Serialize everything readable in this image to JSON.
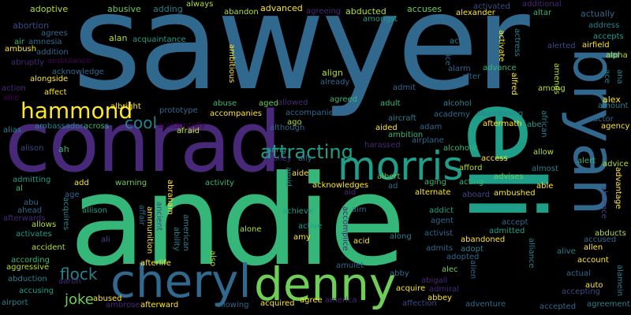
{
  "palette": {
    "yellow": "#fde725",
    "lime": "#b5de2b",
    "green": "#6ece58",
    "sea": "#35b779",
    "teal": "#1f9e89",
    "cyan": "#26828e",
    "blue": "#31688e",
    "indigo": "#3e4989",
    "purple": "#482878",
    "dark": "#440154"
  },
  "words": {
    "sawyer": "sawyer",
    "andie": "andie",
    "eli": "eli",
    "conrad": "conrad",
    "bryan": "bryan",
    "cheryl": "cheryl",
    "denny": "denny",
    "morris": "morris",
    "hammond": "hammond",
    "attracting": "attracting",
    "flock": "flock",
    "cool": "cool",
    "joke": "joke",
    "adoptive": "adoptive",
    "abusive": "abusive",
    "adding": "adding",
    "always": "always",
    "abandon": "abandon",
    "advanced": "advanced",
    "agreeing": "agreeing",
    "abducted": "abducted",
    "accuses": "accuses",
    "activated": "activated",
    "additional": "additional",
    "alexander": "alexander",
    "altar": "altar",
    "actually": "actually",
    "abortion": "abortion",
    "agrees": "agrees",
    "amongst": "amongst",
    "air": "air",
    "amnesia": "amnesia",
    "ambush": "ambush",
    "addition": "addition",
    "abruptly": "abruptly",
    "ambulance": "ambulance",
    "acknowledge": "acknowledge",
    "alan": "alan",
    "acquaintance": "acquaintance",
    "act": "act",
    "address": "address",
    "accepts": "accepts",
    "airfield": "airfield",
    "alerted": "alerted",
    "alpha": "alpha",
    "alarm": "alarm",
    "advance": "advance",
    "alter": "alter",
    "alice": "alice",
    "alfred": "alfred",
    "activate": "activate",
    "actress": "actress",
    "amends": "amends",
    "ace": "ace",
    "ana": "ana",
    "alongside": "alongside",
    "align": "align",
    "already": "already",
    "ambitious": "ambitious",
    "action": "action",
    "allie": "allie",
    "affect": "affect",
    "admit": "admit",
    "among": "among",
    "alex": "alex",
    "amount": "amount",
    "albright": "albright",
    "ambassador": "ambassador",
    "across": "across",
    "abuse": "abuse",
    "aged": "aged",
    "allowed": "allowed",
    "agreed": "agreed",
    "adult": "adult",
    "alcohol": "alcohol",
    "abandoning": "abandoning",
    "prototype": "prototype",
    "accompanies": "accompanies",
    "accompanied": "accompanied",
    "aircraft": "aircraft",
    "academy": "academy",
    "accidentally": "accidentally",
    "although": "although",
    "ago": "ago",
    "adam": "adam",
    "aftermath": "aftermath",
    "abe": "abe",
    "actor": "actor",
    "agency": "agency",
    "alias": "alias",
    "afraid": "afraid",
    "aided": "aided",
    "african": "african",
    "ambition": "ambition",
    "harassed": "harassed",
    "airplane": "airplane",
    "alison": "alison",
    "ah": "ah",
    "aang": "aang",
    "alley": "alley",
    "ally": "ally",
    "alcoholic": "alcoholic",
    "allow": "allow",
    "access": "access",
    "alert": "alert",
    "advice": "advice",
    "afford": "afford",
    "advises": "advises",
    "almost": "almost",
    "advantage": "advantage",
    "admitting": "admitting",
    "al": "al",
    "add": "add",
    "warning": "warning",
    "activity": "activity",
    "amid": "amid",
    "aide": "aide",
    "albert": "albert",
    "acknowledges": "acknowledges",
    "aging": "aging",
    "acting": "acting",
    "able": "able",
    "ad": "ad",
    "aid": "aid",
    "aboard": "aboard",
    "alternate": "alternate",
    "ambushed": "ambushed",
    "age": "age",
    "abraham": "abraham",
    "affair": "affair",
    "ancient": "ancient",
    "abu": "abu",
    "ahead": "ahead",
    "afterwards": "afterwards",
    "acquires": "acquires",
    "allison": "allison",
    "allows": "allows",
    "ammunition": "ammunition",
    "achieve": "achieve",
    "aim": "aim",
    "addict": "addict",
    "absence": "absence",
    "activates": "activates",
    "ali": "ali",
    "ability": "ability",
    "american": "american",
    "agent": "agent",
    "accept": "accept",
    "admitted": "admitted",
    "abducts": "abducts",
    "accused": "accused",
    "allen": "allen",
    "accident": "accident",
    "alone": "alone",
    "active": "active",
    "amy": "amy",
    "acid": "acid",
    "along": "along",
    "activist": "activist",
    "abandoned": "abandoned",
    "accomplice": "accomplice",
    "admits": "admits",
    "adopt": "adopt",
    "adopted": "adopted",
    "alive": "alive",
    "account": "account",
    "according": "according",
    "aggressive": "aggressive",
    "afterlife": "afterlife",
    "also": "also",
    "amulet": "amulet",
    "abby": "abby",
    "alec": "alec",
    "alien": "alien",
    "alliance": "alliance",
    "actual": "actual",
    "alamein": "alamein",
    "abduction": "abduction",
    "aaron": "aaron",
    "abigail": "abigail",
    "auto": "auto",
    "accusing": "accusing",
    "acquire": "acquire",
    "admiral": "admiral",
    "accepting": "accepting",
    "abbey": "abbey",
    "airport": "airport",
    "abused": "abused",
    "ambrose": "ambrose",
    "afterward": "afterward",
    "allowing": "allowing",
    "acquired": "acquired",
    "agree": "agree",
    "america": "america",
    "affection": "affection",
    "adventure": "adventure",
    "accepted": "accepted",
    "agreement": "agreement"
  }
}
